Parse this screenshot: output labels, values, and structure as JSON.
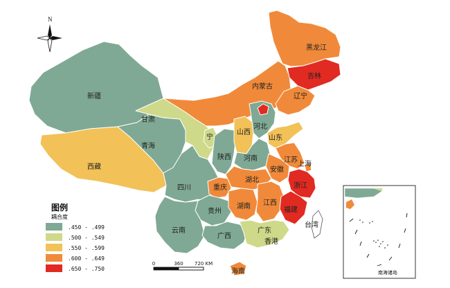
{
  "legend": {
    "title": "图例",
    "subtitle": "耦合度",
    "classes": [
      {
        "label": ".450 - .499",
        "color": "#7fa994"
      },
      {
        "label": ".500 - .549",
        "color": "#cfd98a"
      },
      {
        "label": ".550 - .599",
        "color": "#f2c157"
      },
      {
        "label": ".600 - .649",
        "color": "#f08a3a"
      },
      {
        "label": ".650 - .750",
        "color": "#e12a22"
      }
    ]
  },
  "north_arrow": {
    "label": "N"
  },
  "scale_bar": {
    "ticks": [
      "0",
      "360",
      "720 KM"
    ]
  },
  "inset": {
    "label": "南海诸岛"
  },
  "provinces": [
    {
      "key": "xinjiang",
      "name": "新疆",
      "class": 0
    },
    {
      "key": "xizang",
      "name": "西藏",
      "class": 2
    },
    {
      "key": "qinghai",
      "name": "青海",
      "class": 0
    },
    {
      "key": "gansu",
      "name": "甘肃",
      "class": 1
    },
    {
      "key": "neimenggu",
      "name": "内蒙古",
      "class": 3
    },
    {
      "key": "heilongjiang",
      "name": "黑龙江",
      "class": 3
    },
    {
      "key": "jilin",
      "name": "吉林",
      "class": 4
    },
    {
      "key": "liaoning",
      "name": "辽宁",
      "class": 3
    },
    {
      "key": "ningxia",
      "name": "宁",
      "class": 1
    },
    {
      "key": "shaanxi",
      "name": "陕西",
      "class": 0
    },
    {
      "key": "shanxi",
      "name": "山西",
      "class": 2
    },
    {
      "key": "hebei",
      "name": "河北",
      "class": 0
    },
    {
      "key": "beijing",
      "name": "",
      "class": 4
    },
    {
      "key": "shandong",
      "name": "山东",
      "class": 2
    },
    {
      "key": "henan",
      "name": "河南",
      "class": 0
    },
    {
      "key": "sichuan",
      "name": "四川",
      "class": 0
    },
    {
      "key": "chongqing",
      "name": "重庆",
      "class": 3
    },
    {
      "key": "hubei",
      "name": "湖北",
      "class": 3
    },
    {
      "key": "jiangsu",
      "name": "江苏",
      "class": 3
    },
    {
      "key": "anhui",
      "name": "安徽",
      "class": 3
    },
    {
      "key": "shanghai",
      "name": "上海",
      "class": 3
    },
    {
      "key": "zhejiang",
      "name": "浙江",
      "class": 4
    },
    {
      "key": "guizhou",
      "name": "贵州",
      "class": 0
    },
    {
      "key": "yunnan",
      "name": "云南",
      "class": 0
    },
    {
      "key": "hunan",
      "name": "湖南",
      "class": 3
    },
    {
      "key": "jiangxi",
      "name": "江西",
      "class": 3
    },
    {
      "key": "fujian",
      "name": "福建",
      "class": 4
    },
    {
      "key": "guangxi",
      "name": "广西",
      "class": 0
    },
    {
      "key": "guangdong",
      "name": "广东",
      "class": 1
    },
    {
      "key": "taiwan",
      "name": "台湾",
      "class": null
    },
    {
      "key": "hainan",
      "name": "海南",
      "class": 3
    },
    {
      "key": "hongkong_macau",
      "name": "香港",
      "class": null
    }
  ]
}
